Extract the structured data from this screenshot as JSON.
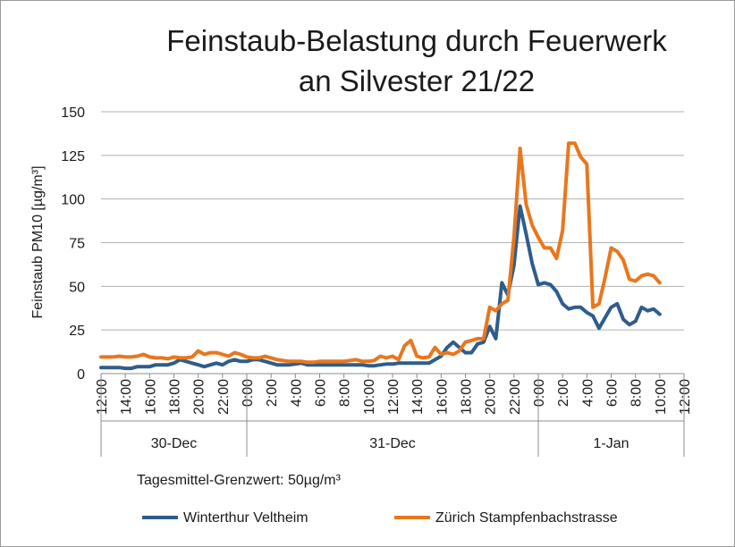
{
  "chart_data": {
    "type": "line",
    "title_line1": "Feinstaub-Belastung durch Feuerwerk",
    "title_line2": "an Silvester 21/22",
    "ylabel": "Feinstaub PM10 [µg/m³]",
    "ylim": [
      0,
      150
    ],
    "yticks": [
      "0",
      "25",
      "50",
      "75",
      "100",
      "125",
      "150"
    ],
    "grid": true,
    "x_hours": [
      12,
      12.5,
      13,
      13.5,
      14,
      14.5,
      15,
      15.5,
      16,
      16.5,
      17,
      17.5,
      18,
      18.5,
      19,
      19.5,
      20,
      20.5,
      21,
      21.5,
      22,
      22.5,
      23,
      23.5,
      24,
      24.5,
      25,
      25.5,
      26,
      26.5,
      27,
      27.5,
      28,
      28.5,
      29,
      29.5,
      30,
      30.5,
      31,
      31.5,
      32,
      32.5,
      33,
      33.5,
      34,
      34.5,
      35,
      35.5,
      36,
      36.5,
      37,
      37.5,
      38,
      38.5,
      39,
      39.5,
      40,
      40.5,
      41,
      41.5,
      42,
      42.5,
      43,
      43.5,
      44,
      44.5,
      45,
      45.5,
      46,
      46.5,
      47,
      47.5,
      48,
      48.5,
      49,
      49.5,
      50,
      50.5,
      51,
      51.5,
      52,
      52.5,
      53,
      53.5,
      54,
      54.5,
      55,
      55.5,
      56,
      56.5,
      57,
      57.5,
      58,
      58.5,
      59,
      59.5,
      60
    ],
    "series": [
      {
        "name": "Winterthur Veltheim",
        "color": "#2e5d8c",
        "values": [
          3.5,
          3.5,
          3.5,
          3.5,
          3,
          3,
          4,
          4,
          4,
          5,
          5,
          5,
          6,
          8,
          7,
          6,
          5,
          4,
          5,
          6,
          5,
          7,
          8,
          7,
          7,
          8,
          8,
          7,
          6,
          5,
          5,
          5,
          5.5,
          6,
          5,
          5,
          5,
          5,
          5,
          5,
          5,
          5,
          5,
          5,
          4.5,
          4.5,
          5,
          5.5,
          5.5,
          6,
          6,
          6,
          6,
          6,
          6,
          8,
          10,
          15,
          18,
          15,
          12,
          12,
          17,
          18,
          27,
          20,
          52,
          45,
          62,
          96,
          80,
          63,
          51,
          52,
          51,
          47,
          40,
          37,
          38,
          38,
          35,
          33,
          26,
          32,
          38,
          40,
          31,
          28,
          30,
          38,
          36,
          37,
          34
        ]
      },
      {
        "name": "Zürich Stampfenbachstrasse",
        "color": "#e8771e",
        "values": [
          9.5,
          9.5,
          9.5,
          10,
          9.5,
          9.5,
          10,
          11,
          9.5,
          9,
          9,
          8.5,
          9.5,
          9,
          9,
          9.5,
          13,
          11,
          12,
          12,
          11,
          10,
          12,
          11,
          9.5,
          9,
          9,
          10,
          9,
          8,
          7.5,
          7,
          7,
          7,
          6.5,
          6.5,
          7,
          7,
          7,
          7,
          7,
          7.5,
          8,
          7,
          7,
          7.5,
          10,
          9,
          10,
          8,
          16,
          19,
          10,
          9,
          9.5,
          15,
          11,
          12,
          11,
          13,
          18,
          19,
          20,
          20,
          38,
          36,
          40,
          42,
          78,
          129,
          97,
          85,
          78,
          72,
          72,
          66,
          82,
          132,
          132,
          124,
          120,
          38,
          40,
          55,
          72,
          70,
          65,
          54,
          53,
          56,
          57,
          56,
          52
        ]
      }
    ],
    "xtick_labels": [
      "12:00",
      "14:00",
      "16:00",
      "18:00",
      "20:00",
      "22:00",
      "0:00",
      "2:00",
      "4:00",
      "6:00",
      "8:00",
      "10:00",
      "12:00",
      "14:00",
      "16:00",
      "18:00",
      "20:00",
      "22:00",
      "0:00",
      "2:00",
      "4:00",
      "6:00",
      "8:00",
      "10:00",
      "12:00"
    ],
    "day_groups": [
      {
        "label": "30-Dec",
        "start_hour": 12,
        "end_hour": 24
      },
      {
        "label": "31-Dec",
        "start_hour": 24,
        "end_hour": 48
      },
      {
        "label": "1-Jan",
        "start_hour": 48,
        "end_hour": 60
      }
    ],
    "annotation": "Tagesmittel-Grenzwert: 50µg/m³",
    "legend_placement": "bottom"
  }
}
